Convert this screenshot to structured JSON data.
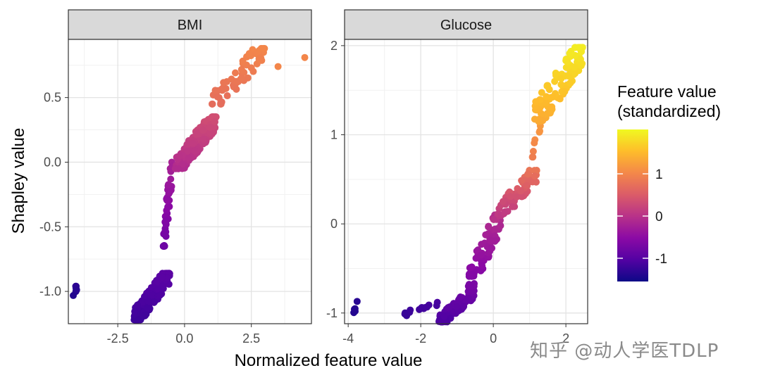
{
  "watermark": "知乎 @动人学医TDLP",
  "chart_data": [
    {
      "type": "scatter",
      "panel": "BMI",
      "xlim": [
        -4.35,
        4.75
      ],
      "ylim": [
        -1.25,
        0.95
      ],
      "xticks": [
        -2.5,
        0.0,
        2.5
      ],
      "xtick_labels": [
        "-2.5",
        "0.0",
        "2.5"
      ],
      "yticks": [
        -1.0,
        -0.5,
        0.0,
        0.5
      ],
      "ytick_labels": [
        "-1.0",
        "-0.5",
        "0.0",
        "0.5"
      ],
      "clusters": [
        {
          "x": [
            -4.2,
            -4.0
          ],
          "y": [
            -1.08,
            -0.94
          ],
          "n": 7,
          "color": [
            -1.45,
            -1.3
          ]
        },
        {
          "x": [
            -1.9,
            -0.55
          ],
          "y": [
            -1.22,
            -0.86
          ],
          "n": 170,
          "color": [
            -1.2,
            -0.95
          ]
        },
        {
          "x": [
            -0.8,
            -0.45
          ],
          "y": [
            -0.65,
            0.0
          ],
          "n": 40,
          "color": [
            -0.8,
            -0.2
          ]
        },
        {
          "x": [
            -0.35,
            1.2
          ],
          "y": [
            -0.05,
            0.35
          ],
          "n": 190,
          "color": [
            -0.1,
            0.35
          ]
        },
        {
          "x": [
            1.0,
            3.0
          ],
          "y": [
            0.45,
            0.88
          ],
          "n": 55,
          "color": [
            0.7,
            1.0
          ]
        },
        {
          "x": [
            3.5,
            3.5
          ],
          "y": [
            0.74,
            0.74
          ],
          "n": 1,
          "color": [
            1.0,
            1.0
          ]
        },
        {
          "x": [
            4.5,
            4.5
          ],
          "y": [
            0.81,
            0.81
          ],
          "n": 1,
          "color": [
            1.0,
            1.0
          ]
        }
      ]
    },
    {
      "type": "scatter",
      "panel": "Glucose",
      "xlim": [
        -4.1,
        2.6
      ],
      "ylim": [
        -1.12,
        2.07
      ],
      "xticks": [
        -4,
        -2,
        0,
        2
      ],
      "xtick_labels": [
        "-4",
        "-2",
        "0",
        "2"
      ],
      "yticks": [
        -1,
        0,
        1,
        2
      ],
      "ytick_labels": [
        "-1",
        "0",
        "1",
        "2"
      ],
      "clusters": [
        {
          "x": [
            -3.85,
            -3.75
          ],
          "y": [
            -1.02,
            -0.87
          ],
          "n": 5,
          "color": [
            -1.4,
            -1.35
          ]
        },
        {
          "x": [
            -2.5,
            -1.5
          ],
          "y": [
            -1.03,
            -0.88
          ],
          "n": 14,
          "color": [
            -1.25,
            -1.1
          ]
        },
        {
          "x": [
            -1.5,
            -0.5
          ],
          "y": [
            -1.1,
            -0.75
          ],
          "n": 110,
          "color": [
            -1.1,
            -0.75
          ]
        },
        {
          "x": [
            -0.7,
            0.2
          ],
          "y": [
            -0.7,
            0.1
          ],
          "n": 90,
          "color": [
            -0.7,
            -0.05
          ]
        },
        {
          "x": [
            0.0,
            1.2
          ],
          "y": [
            0.05,
            0.6
          ],
          "n": 75,
          "color": [
            0.0,
            0.8
          ]
        },
        {
          "x": [
            1.05,
            1.3
          ],
          "y": [
            0.75,
            1.1
          ],
          "n": 8,
          "color": [
            0.9,
            1.2
          ]
        },
        {
          "x": [
            1.1,
            2.5
          ],
          "y": [
            1.15,
            1.98
          ],
          "n": 110,
          "color": [
            1.35,
            1.95
          ]
        }
      ]
    }
  ],
  "axes": {
    "xlabel": "Normalized feature value",
    "ylabel": "Shapley value"
  },
  "legend": {
    "title_line1": "Feature value",
    "title_line2": "(standardized)",
    "ticks": [
      1,
      0,
      -1
    ],
    "tick_labels": [
      "1",
      "0",
      "-1"
    ],
    "range": [
      -1.55,
      2.05
    ],
    "colors": [
      "#0d0887",
      "#5302a3",
      "#8b0aa5",
      "#b83289",
      "#db5c68",
      "#f48849",
      "#febd2a",
      "#f0f921"
    ]
  }
}
